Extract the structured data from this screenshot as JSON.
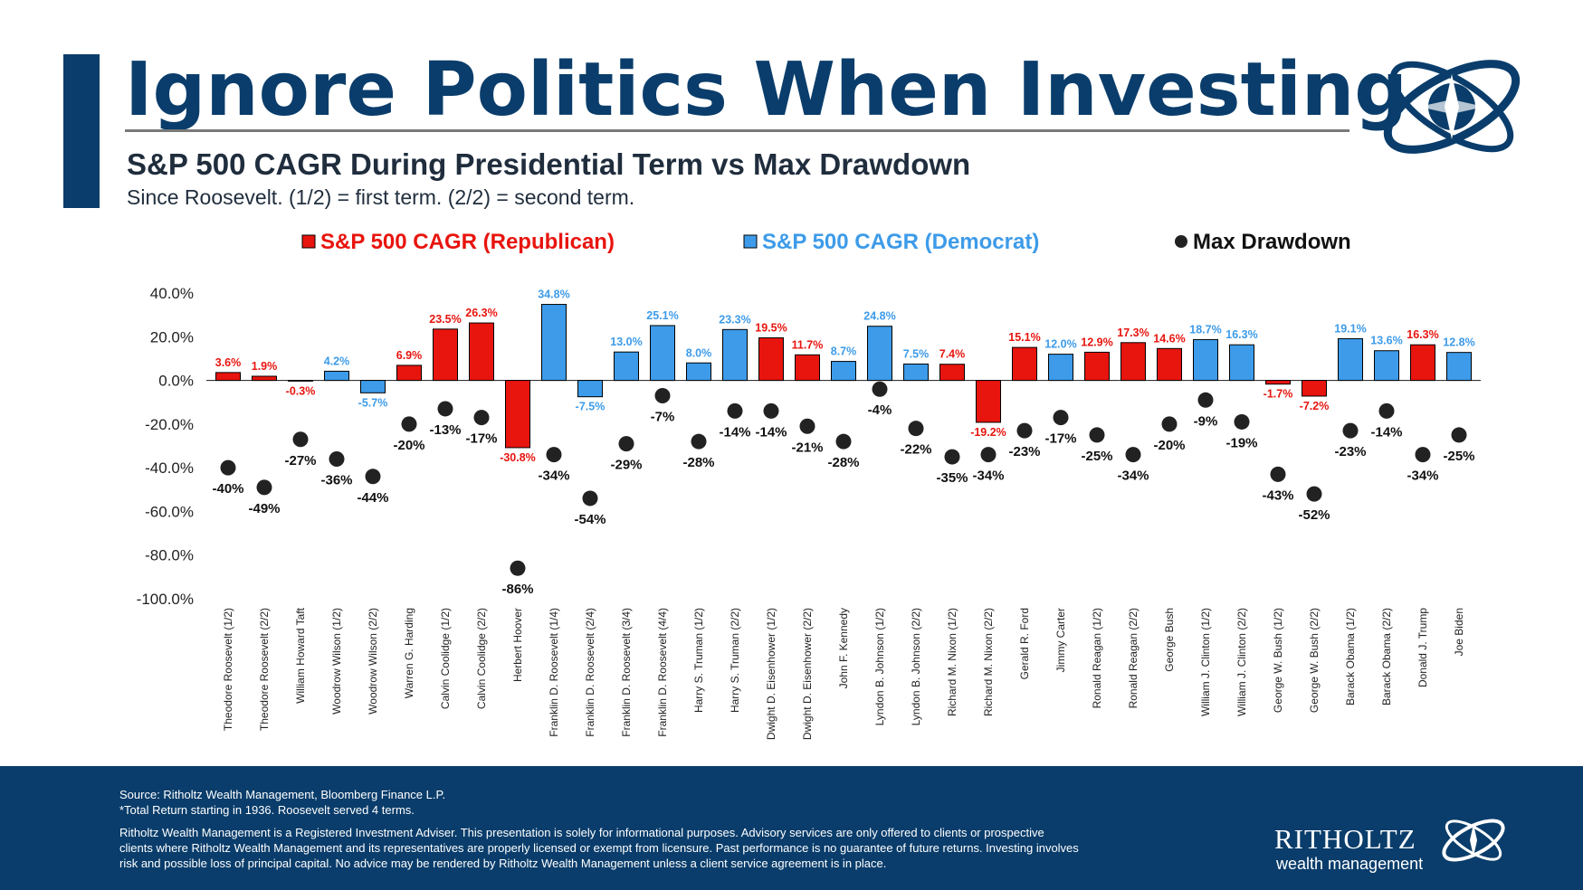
{
  "header": {
    "title": "Ignore Politics When Investing",
    "subtitle": "S&P 500 CAGR During Presidential Term vs Max Drawdown",
    "note": "Since Roosevelt. (1/2) = first term. (2/2) = second term."
  },
  "colors": {
    "navy": "#0a3d6b",
    "republican": "#e8140e",
    "democrat": "#3d9be9",
    "drawdown": "#222222"
  },
  "chart_data": {
    "type": "bar",
    "legend": [
      "S&P 500 CAGR (Republican)",
      "S&P 500 CAGR (Democrat)",
      "Max Drawdown"
    ],
    "legend_position": "top",
    "ylim": [
      -100,
      40
    ],
    "yticks": [
      40,
      20,
      0,
      -20,
      -40,
      -60,
      -80,
      -100
    ],
    "ytick_labels": [
      "40.0%",
      "20.0%",
      "0.0%",
      "-20.0%",
      "-40.0%",
      "-60.0%",
      "-80.0%",
      "-100.0%"
    ],
    "categories": [
      "Theodore Roosevelt (1/2)",
      "Theodore Roosevelt (2/2)",
      "William Howard Taft",
      "Woodrow Wilson (1/2)",
      "Woodrow Wilson (2/2)",
      "Warren G. Harding",
      "Calvin Coolidge (1/2)",
      "Calvin Coolidge (2/2)",
      "Herbert Hoover",
      "Franklin D. Roosevelt (1/4)",
      "Franklin D. Roosevelt (2/4)",
      "Franklin D. Roosevelt (3/4)",
      "Franklin D. Roosevelt (4/4)",
      "Harry S. Truman (1/2)",
      "Harry S. Truman (2/2)",
      "Dwight D. Eisenhower (1/2)",
      "Dwight D. Eisenhower (2/2)",
      "John F. Kennedy",
      "Lyndon B. Johnson (1/2)",
      "Lyndon B. Johnson (2/2)",
      "Richard M. Nixon (1/2)",
      "Richard M. Nixon (2/2)",
      "Gerald R. Ford",
      "Jimmy Carter",
      "Ronald Reagan (1/2)",
      "Ronald Reagan (2/2)",
      "George Bush",
      "William J. Clinton (1/2)",
      "William J. Clinton (2/2)",
      "George W. Bush (1/2)",
      "George W. Bush (2/2)",
      "Barack Obama (1/2)",
      "Barack Obama (2/2)",
      "Donald J. Trump",
      "Joe Biden"
    ],
    "party": [
      "R",
      "R",
      "R",
      "D",
      "D",
      "R",
      "R",
      "R",
      "R",
      "D",
      "D",
      "D",
      "D",
      "D",
      "D",
      "R",
      "R",
      "D",
      "D",
      "D",
      "R",
      "R",
      "R",
      "D",
      "R",
      "R",
      "R",
      "D",
      "D",
      "R",
      "R",
      "D",
      "D",
      "R",
      "D"
    ],
    "cagr": [
      3.6,
      1.9,
      -0.3,
      4.2,
      -5.7,
      6.9,
      23.5,
      26.3,
      -30.8,
      34.8,
      -7.5,
      13.0,
      25.1,
      8.0,
      23.3,
      19.5,
      11.7,
      8.7,
      24.8,
      7.5,
      7.4,
      -19.2,
      15.1,
      12.0,
      12.9,
      17.3,
      14.6,
      18.7,
      16.3,
      -1.7,
      -7.2,
      19.1,
      13.6,
      16.3,
      12.8
    ],
    "cagr_labels": [
      "3.6%",
      "1.9%",
      "-0.3%",
      "4.2%",
      "-5.7%",
      "6.9%",
      "23.5%",
      "26.3%",
      "-30.8%",
      "34.8%",
      "-7.5%",
      "13.0%",
      "25.1%",
      "8.0%",
      "23.3%",
      "19.5%",
      "11.7%",
      "8.7%",
      "24.8%",
      "7.5%",
      "7.4%",
      "-19.2%",
      "15.1%",
      "12.0%",
      "12.9%",
      "17.3%",
      "14.6%",
      "18.7%",
      "16.3%",
      "-1.7%",
      "-7.2%",
      "19.1%",
      "13.6%",
      "16.3%",
      "12.8%"
    ],
    "drawdown": [
      -40,
      -49,
      -27,
      -36,
      -44,
      -20,
      -13,
      -17,
      -86,
      -34,
      -54,
      -29,
      -7,
      -28,
      -14,
      -14,
      -21,
      -28,
      -4,
      -22,
      -35,
      -34,
      -23,
      -17,
      -25,
      -34,
      -20,
      -9,
      -19,
      -43,
      -52,
      -23,
      -14,
      -34,
      -25
    ],
    "drawdown_labels": [
      "-40%",
      "-49%",
      "-27%",
      "-36%",
      "-44%",
      "-20%",
      "-13%",
      "-17%",
      "-86%",
      "-34%",
      "-54%",
      "-29%",
      "-7%",
      "-28%",
      "-14%",
      "-14%",
      "-21%",
      "-28%",
      "-4%",
      "-22%",
      "-35%",
      "-34%",
      "-23%",
      "-17%",
      "-25%",
      "-34%",
      "-20%",
      "-9%",
      "-19%",
      "-43%",
      "-52%",
      "-23%",
      "-14%",
      "-34%",
      "-25%"
    ]
  },
  "footer": {
    "source": "Source: Ritholtz Wealth Management, Bloomberg Finance L.P.",
    "total_return_note": "*Total Return starting in 1936. Roosevelt served 4 terms.",
    "disclaimer": "Ritholtz Wealth Management is a Registered Investment Adviser. This presentation is solely for informational purposes. Advisory services are only offered to clients or prospective clients where Ritholtz Wealth Management and its representatives are properly licensed or exempt from licensure. Past performance is no guarantee of future returns. Investing involves risk and possible loss of principal capital. No advice may be rendered by Ritholtz Wealth Management unless a client service agreement is in place.",
    "brand_name": "RITHOLTZ",
    "brand_sub": "wealth management"
  }
}
